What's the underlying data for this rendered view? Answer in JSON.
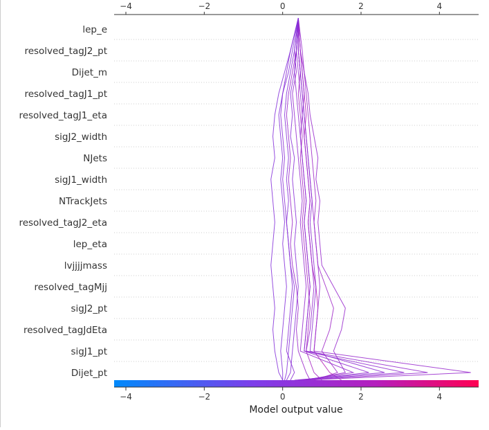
{
  "chart_data": {
    "type": "line",
    "subtype": "shap-decision-plot",
    "features": [
      "lep_e",
      "resolved_tagJ2_pt",
      "Dijet_m",
      "resolved_tagJ1_pt",
      "resolved_tagJ1_eta",
      "sigJ2_width",
      "NJets",
      "sigJ1_width",
      "NTrackJets",
      "resolved_tagJ2_eta",
      "lep_eta",
      "lvjjjjmass",
      "resolved_tagMjj",
      "sigJ2_pt",
      "resolved_tagJdEta",
      "sigJ1_pt",
      "Dijet_pt"
    ],
    "xlim": [
      -4.3,
      5.0
    ],
    "xticks": [
      -4,
      -2,
      0,
      2,
      4
    ],
    "xtick_labels": [
      "−4",
      "−2",
      "0",
      "2",
      "4"
    ],
    "xlabel": "Model output value",
    "base_value": 0.4,
    "grid": "horizontal-dotted",
    "colormap": [
      "#008afb",
      "#7d3eea",
      "#b51fbd",
      "#ff0052"
    ],
    "line_color_range": [
      "#7a33e0",
      "#b41bb7"
    ],
    "colorbar": "bottom",
    "series_note": "several hundred sample paths; representative paths below (x per feature row, top to bottom, final value at bottom edge)",
    "series": [
      {
        "values": [
          0.4,
          0.2,
          0.05,
          -0.1,
          -0.2,
          -0.25,
          -0.2,
          -0.3,
          -0.25,
          -0.2,
          -0.25,
          -0.3,
          -0.25,
          -0.2,
          -0.25,
          -0.2,
          -0.1,
          0.0
        ]
      },
      {
        "values": [
          0.4,
          0.25,
          0.15,
          0.0,
          -0.1,
          -0.05,
          0.0,
          -0.05,
          0.0,
          0.05,
          0.0,
          0.05,
          0.1,
          0.05,
          0.0,
          -0.05,
          0.0,
          0.0
        ]
      },
      {
        "values": [
          0.4,
          0.3,
          0.2,
          0.1,
          0.05,
          0.1,
          0.15,
          0.1,
          0.15,
          0.1,
          0.15,
          0.2,
          0.3,
          0.25,
          0.2,
          0.15,
          0.1,
          0.05
        ]
      },
      {
        "values": [
          0.4,
          0.35,
          0.3,
          0.2,
          0.25,
          0.2,
          0.3,
          0.25,
          0.3,
          0.35,
          0.3,
          0.35,
          0.4,
          0.35,
          0.3,
          0.25,
          0.2,
          0.1
        ]
      },
      {
        "values": [
          0.4,
          0.4,
          0.45,
          0.4,
          0.45,
          0.5,
          0.45,
          0.5,
          0.55,
          0.5,
          0.55,
          0.6,
          0.65,
          0.7,
          0.65,
          0.6,
          0.8,
          1.0
        ]
      },
      {
        "values": [
          0.4,
          0.45,
          0.5,
          0.55,
          0.6,
          0.55,
          0.6,
          0.65,
          0.7,
          0.65,
          0.7,
          0.75,
          0.85,
          0.9,
          0.85,
          0.8,
          1.2,
          1.5
        ]
      },
      {
        "values": [
          0.4,
          0.45,
          0.55,
          0.6,
          0.65,
          0.7,
          0.75,
          0.8,
          0.85,
          0.8,
          0.85,
          0.9,
          1.1,
          1.3,
          1.2,
          1.0,
          1.4,
          0.8
        ]
      },
      {
        "values": [
          0.4,
          0.5,
          0.55,
          0.65,
          0.7,
          0.8,
          0.9,
          0.85,
          0.95,
          0.9,
          0.95,
          1.0,
          1.3,
          1.6,
          1.5,
          1.3,
          1.6,
          0.6
        ]
      },
      {
        "values": [
          0.4,
          0.3,
          0.35,
          0.25,
          0.3,
          0.35,
          0.4,
          0.45,
          0.5,
          0.45,
          0.5,
          0.55,
          0.6,
          0.55,
          0.5,
          0.45,
          1.8,
          0.5
        ]
      },
      {
        "values": [
          0.4,
          0.35,
          0.4,
          0.45,
          0.5,
          0.45,
          0.5,
          0.55,
          0.6,
          0.55,
          0.6,
          0.65,
          0.7,
          0.65,
          0.6,
          0.55,
          2.2,
          0.4
        ]
      },
      {
        "values": [
          0.4,
          0.4,
          0.45,
          0.5,
          0.55,
          0.6,
          0.65,
          0.7,
          0.75,
          0.7,
          0.75,
          0.8,
          0.85,
          0.8,
          0.75,
          0.7,
          2.6,
          0.3
        ]
      },
      {
        "values": [
          0.4,
          0.35,
          0.3,
          0.35,
          0.4,
          0.45,
          0.5,
          0.55,
          0.6,
          0.55,
          0.6,
          0.65,
          0.7,
          0.65,
          0.6,
          0.55,
          3.1,
          0.4
        ]
      },
      {
        "values": [
          0.4,
          0.45,
          0.5,
          0.55,
          0.5,
          0.55,
          0.6,
          0.65,
          0.7,
          0.65,
          0.7,
          0.75,
          0.8,
          0.75,
          0.7,
          0.6,
          3.7,
          0.5
        ]
      },
      {
        "values": [
          0.4,
          0.4,
          0.45,
          0.5,
          0.55,
          0.6,
          0.65,
          0.7,
          0.75,
          0.8,
          0.85,
          0.9,
          0.95,
          0.9,
          0.85,
          0.8,
          4.8,
          0.6
        ]
      },
      {
        "values": [
          0.4,
          0.2,
          0.1,
          0.0,
          -0.05,
          0.0,
          0.05,
          0.0,
          0.05,
          0.1,
          0.15,
          0.2,
          0.25,
          0.2,
          0.15,
          0.1,
          0.3,
          0.2
        ]
      },
      {
        "values": [
          0.4,
          0.35,
          0.25,
          0.15,
          0.1,
          0.15,
          0.2,
          0.15,
          0.2,
          0.25,
          0.2,
          0.25,
          0.35,
          0.4,
          0.35,
          0.4,
          0.6,
          0.7
        ]
      }
    ]
  }
}
